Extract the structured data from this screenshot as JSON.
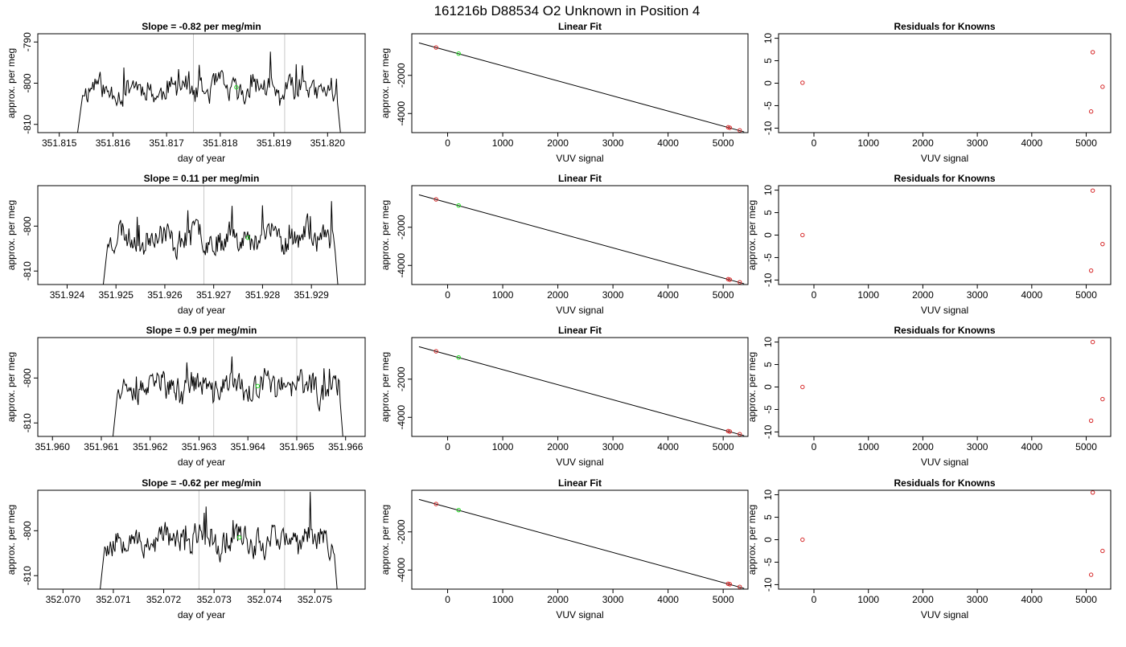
{
  "title": "161216b     D88534   O2 Unknown in Position  4",
  "colors": {
    "known_point": "#d62728",
    "unknown_point": "#22dd22",
    "trace": "#000000",
    "marker_line": "#c8c8c8"
  },
  "chart_data": [
    {
      "type": "line",
      "row": 0,
      "title": "Slope =  -0.82  per meg/min",
      "xlabel": "day of year",
      "ylabel": "approx. per meg",
      "xlim": [
        351.8146,
        351.8207
      ],
      "ylim": [
        -812,
        -788
      ],
      "xticks": [
        "351.815",
        "351.816",
        "351.817",
        "351.818",
        "351.819",
        "351.820"
      ],
      "yticks": [
        "-790",
        "-800",
        "-810"
      ],
      "x_start": 351.8153,
      "x_end": 351.8203,
      "baseline": -801.5,
      "seed": 11,
      "markers_x": [
        351.8175,
        351.8192
      ],
      "unknown_point": [
        351.8183,
        -801
      ]
    },
    {
      "type": "scatter",
      "row": 0,
      "title": "Linear Fit",
      "xlabel": "VUV signal",
      "ylabel": "approx. per meg",
      "xlim": [
        -650,
        5450
      ],
      "ylim": [
        -5000,
        180
      ],
      "xticks": [
        "0",
        "1000",
        "2000",
        "3000",
        "4000",
        "5000"
      ],
      "yticks": [
        "-2000",
        "-4000"
      ],
      "fit_line": [
        [
          -520,
          -300
        ],
        [
          5380,
          -4960
        ]
      ],
      "known_points": [
        [
          -210,
          -540
        ],
        [
          5090,
          -4720
        ],
        [
          5120,
          -4745
        ],
        [
          5300,
          -4880
        ]
      ],
      "unknown_points": [
        [
          200,
          -860
        ]
      ]
    },
    {
      "type": "scatter",
      "row": 0,
      "title": "Residuals for Knowns",
      "xlabel": "VUV signal",
      "ylabel": "",
      "xlim": [
        -650,
        5450
      ],
      "ylim": [
        -11,
        11
      ],
      "xticks": [
        "0",
        "1000",
        "2000",
        "3000",
        "4000",
        "5000"
      ],
      "yticks": [
        "10",
        "5",
        "0",
        "-5",
        "-10"
      ],
      "known_points": [
        [
          -210,
          0.1
        ],
        [
          5090,
          -6.3
        ],
        [
          5120,
          6.9
        ],
        [
          5300,
          -0.8
        ]
      ]
    },
    {
      "type": "line",
      "row": 1,
      "title": "Slope =  0.11  per meg/min",
      "xlabel": "day of year",
      "ylabel": "approx. per meg",
      "xlim": [
        351.9234,
        351.9301
      ],
      "ylim": [
        -813,
        -791
      ],
      "xticks": [
        "351.924",
        "351.925",
        "351.926",
        "351.927",
        "351.928",
        "351.929"
      ],
      "yticks": [
        "-800",
        "-810"
      ],
      "x_start": 351.9247,
      "x_end": 351.9296,
      "baseline": -802.5,
      "seed": 23,
      "markers_x": [
        351.9268,
        351.9286
      ],
      "unknown_point": [
        351.9277,
        -802.6
      ]
    },
    {
      "type": "scatter",
      "row": 1,
      "title": "Linear Fit",
      "xlabel": "VUV signal",
      "ylabel": "approx. per meg",
      "xlim": [
        -650,
        5450
      ],
      "ylim": [
        -5000,
        180
      ],
      "xticks": [
        "0",
        "1000",
        "2000",
        "3000",
        "4000",
        "5000"
      ],
      "yticks": [
        "-2000",
        "-4000"
      ],
      "fit_line": [
        [
          -520,
          -300
        ],
        [
          5380,
          -4960
        ]
      ],
      "known_points": [
        [
          -210,
          -540
        ],
        [
          5090,
          -4720
        ],
        [
          5120,
          -4745
        ],
        [
          5300,
          -4880
        ]
      ],
      "unknown_points": [
        [
          200,
          -860
        ]
      ]
    },
    {
      "type": "scatter",
      "row": 1,
      "title": "Residuals for Knowns",
      "xlabel": "VUV signal",
      "ylabel": "approx. per meg",
      "xlim": [
        -650,
        5450
      ],
      "ylim": [
        -11,
        11
      ],
      "xticks": [
        "0",
        "1000",
        "2000",
        "3000",
        "4000",
        "5000"
      ],
      "yticks": [
        "10",
        "5",
        "0",
        "-5",
        "-10"
      ],
      "known_points": [
        [
          -210,
          0
        ],
        [
          5090,
          -7.9
        ],
        [
          5120,
          9.9
        ],
        [
          5300,
          -2
        ]
      ]
    },
    {
      "type": "line",
      "row": 2,
      "title": "Slope =  0.9  per meg/min",
      "xlabel": "day of year",
      "ylabel": "approx. per meg",
      "xlim": [
        351.9597,
        351.9664
      ],
      "ylim": [
        -813,
        -791
      ],
      "xticks": [
        "351.960",
        "351.961",
        "351.962",
        "351.963",
        "351.964",
        "351.965",
        "351.966"
      ],
      "yticks": [
        "-800",
        "-810"
      ],
      "x_start": 351.9612,
      "x_end": 351.966,
      "baseline": -802,
      "seed": 37,
      "markers_x": [
        351.9633,
        351.965
      ],
      "unknown_point": [
        351.9642,
        -801.8
      ]
    },
    {
      "type": "scatter",
      "row": 2,
      "title": "Linear Fit",
      "xlabel": "VUV signal",
      "ylabel": "approx. per meg",
      "xlim": [
        -650,
        5450
      ],
      "ylim": [
        -5000,
        180
      ],
      "xticks": [
        "0",
        "1000",
        "2000",
        "3000",
        "4000",
        "5000"
      ],
      "yticks": [
        "-2000",
        "-4000"
      ],
      "fit_line": [
        [
          -520,
          -300
        ],
        [
          5380,
          -4960
        ]
      ],
      "known_points": [
        [
          -210,
          -540
        ],
        [
          5090,
          -4720
        ],
        [
          5120,
          -4745
        ],
        [
          5300,
          -4880
        ]
      ],
      "unknown_points": [
        [
          200,
          -860
        ]
      ]
    },
    {
      "type": "scatter",
      "row": 2,
      "title": "Residuals for Knowns",
      "xlabel": "VUV signal",
      "ylabel": "approx. per meg",
      "xlim": [
        -650,
        5450
      ],
      "ylim": [
        -11,
        11
      ],
      "xticks": [
        "0",
        "1000",
        "2000",
        "3000",
        "4000",
        "5000"
      ],
      "yticks": [
        "10",
        "5",
        "0",
        "-5",
        "-10"
      ],
      "known_points": [
        [
          -210,
          0
        ],
        [
          5090,
          -7.5
        ],
        [
          5120,
          10
        ],
        [
          5300,
          -2.7
        ]
      ]
    },
    {
      "type": "line",
      "row": 3,
      "title": "Slope =  -0.62  per meg/min",
      "xlabel": "day of year",
      "ylabel": "approx. per meg",
      "xlim": [
        352.0695,
        352.076
      ],
      "ylim": [
        -813,
        -791
      ],
      "xticks": [
        "352.070",
        "352.071",
        "352.072",
        "352.073",
        "352.074",
        "352.075"
      ],
      "yticks": [
        "-800",
        "-810"
      ],
      "x_start": 352.0707,
      "x_end": 352.0755,
      "baseline": -802,
      "seed": 53,
      "markers_x": [
        352.0727,
        352.0744
      ],
      "unknown_point": [
        352.0735,
        -801.5
      ]
    },
    {
      "type": "scatter",
      "row": 3,
      "title": "Linear Fit",
      "xlabel": "VUV signal",
      "ylabel": "approx. per meg",
      "xlim": [
        -650,
        5450
      ],
      "ylim": [
        -5000,
        180
      ],
      "xticks": [
        "0",
        "1000",
        "2000",
        "3000",
        "4000",
        "5000"
      ],
      "yticks": [
        "-2000",
        "-4000"
      ],
      "fit_line": [
        [
          -520,
          -300
        ],
        [
          5380,
          -4960
        ]
      ],
      "known_points": [
        [
          -210,
          -540
        ],
        [
          5090,
          -4720
        ],
        [
          5120,
          -4745
        ],
        [
          5300,
          -4880
        ]
      ],
      "unknown_points": [
        [
          200,
          -860
        ]
      ]
    },
    {
      "type": "scatter",
      "row": 3,
      "title": "Residuals for Knowns",
      "xlabel": "VUV signal",
      "ylabel": "approx. per meg",
      "xlim": [
        -650,
        5450
      ],
      "ylim": [
        -11,
        11
      ],
      "xticks": [
        "0",
        "1000",
        "2000",
        "3000",
        "4000",
        "5000"
      ],
      "yticks": [
        "10",
        "5",
        "0",
        "-5",
        "-10"
      ],
      "known_points": [
        [
          -210,
          0
        ],
        [
          5090,
          -7.8
        ],
        [
          5120,
          10.5
        ],
        [
          5300,
          -2.5
        ]
      ]
    }
  ]
}
